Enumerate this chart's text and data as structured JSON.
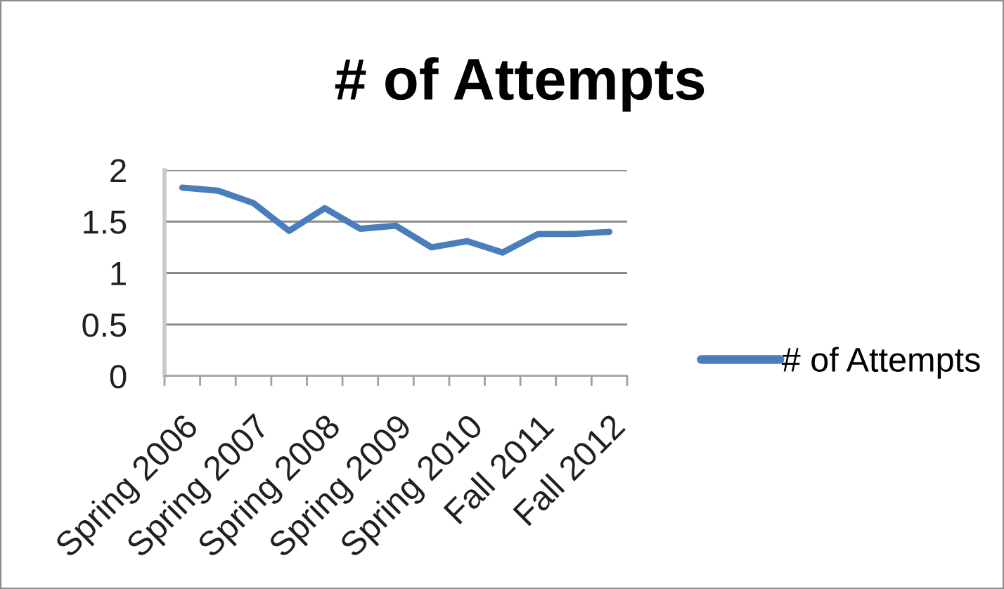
{
  "chart_data": {
    "type": "line",
    "title": "# of Attempts",
    "categories": [
      "Spring 2006",
      null,
      "Spring 2007",
      null,
      "Spring 2008",
      null,
      "Spring 2009",
      null,
      "Spring 2010",
      null,
      "Fall 2011",
      null,
      "Fall 2012"
    ],
    "series": [
      {
        "name": "# of Attempts",
        "color": "#4a7ebb",
        "values": [
          1.83,
          1.8,
          1.68,
          1.41,
          1.63,
          1.43,
          1.46,
          1.25,
          1.31,
          1.2,
          1.38,
          1.38,
          1.4
        ]
      }
    ],
    "ylim": [
      0,
      2
    ],
    "yticks": [
      0,
      0.5,
      1,
      1.5,
      2
    ],
    "grid": "y",
    "legend": "right",
    "line_style": "solid"
  }
}
